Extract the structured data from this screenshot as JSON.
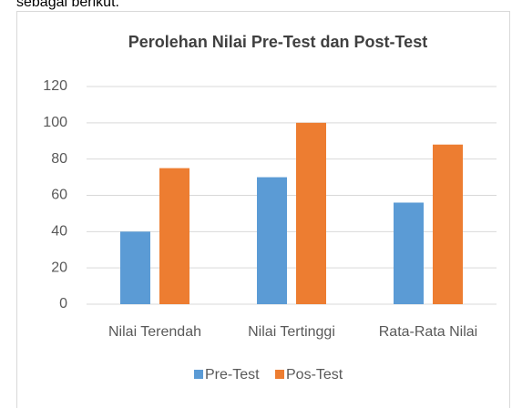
{
  "page_text": "sebagai berikut.",
  "chart_data": {
    "type": "bar",
    "title": "Perolehan Nilai Pre-Test dan Post-Test",
    "categories": [
      "Nilai Terendah",
      "Nilai Tertinggi",
      "Rata-Rata Nilai"
    ],
    "series": [
      {
        "name": "Pre-Test",
        "color": "#5b9bd5",
        "values": [
          40,
          70,
          56
        ]
      },
      {
        "name": "Pos-Test",
        "color": "#ed7d31",
        "values": [
          75,
          100,
          88
        ]
      }
    ],
    "ylim": [
      0,
      120
    ],
    "yticks": [
      0,
      20,
      40,
      60,
      80,
      100,
      120
    ],
    "grid": true,
    "legend": "bottom"
  }
}
